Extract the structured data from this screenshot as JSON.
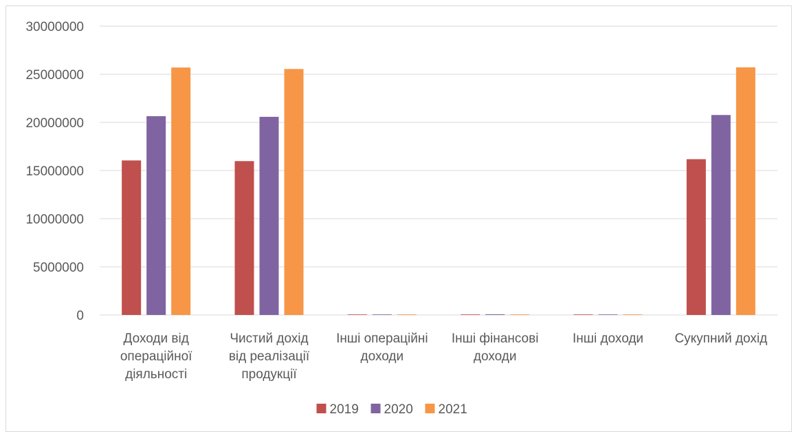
{
  "chart_data": {
    "type": "bar",
    "title": "",
    "xlabel": "",
    "ylabel": "",
    "ylim": [
      0,
      30000000
    ],
    "yticks": [
      0,
      5000000,
      10000000,
      15000000,
      20000000,
      25000000,
      30000000
    ],
    "grid": true,
    "legend_position": "bottom",
    "categories": [
      [
        "Доходи від",
        "операційної",
        "діяльності"
      ],
      [
        "Чистий дохід",
        "від реалізації",
        "продукції"
      ],
      [
        "Інші операційні",
        "доходи"
      ],
      [
        "Інші фінансові",
        "доходи"
      ],
      [
        "Інші доходи"
      ],
      [
        "Сукупний дохід"
      ]
    ],
    "series": [
      {
        "name": "2019",
        "color": "#c0504d",
        "values": [
          16050000,
          15980000,
          30000,
          60000,
          5000,
          16180000
        ]
      },
      {
        "name": "2020",
        "color": "#8064a2",
        "values": [
          20650000,
          20580000,
          40000,
          70000,
          5000,
          20770000
        ]
      },
      {
        "name": "2021",
        "color": "#f79646",
        "values": [
          25700000,
          25550000,
          50000,
          30000,
          5000,
          25720000
        ]
      }
    ]
  }
}
